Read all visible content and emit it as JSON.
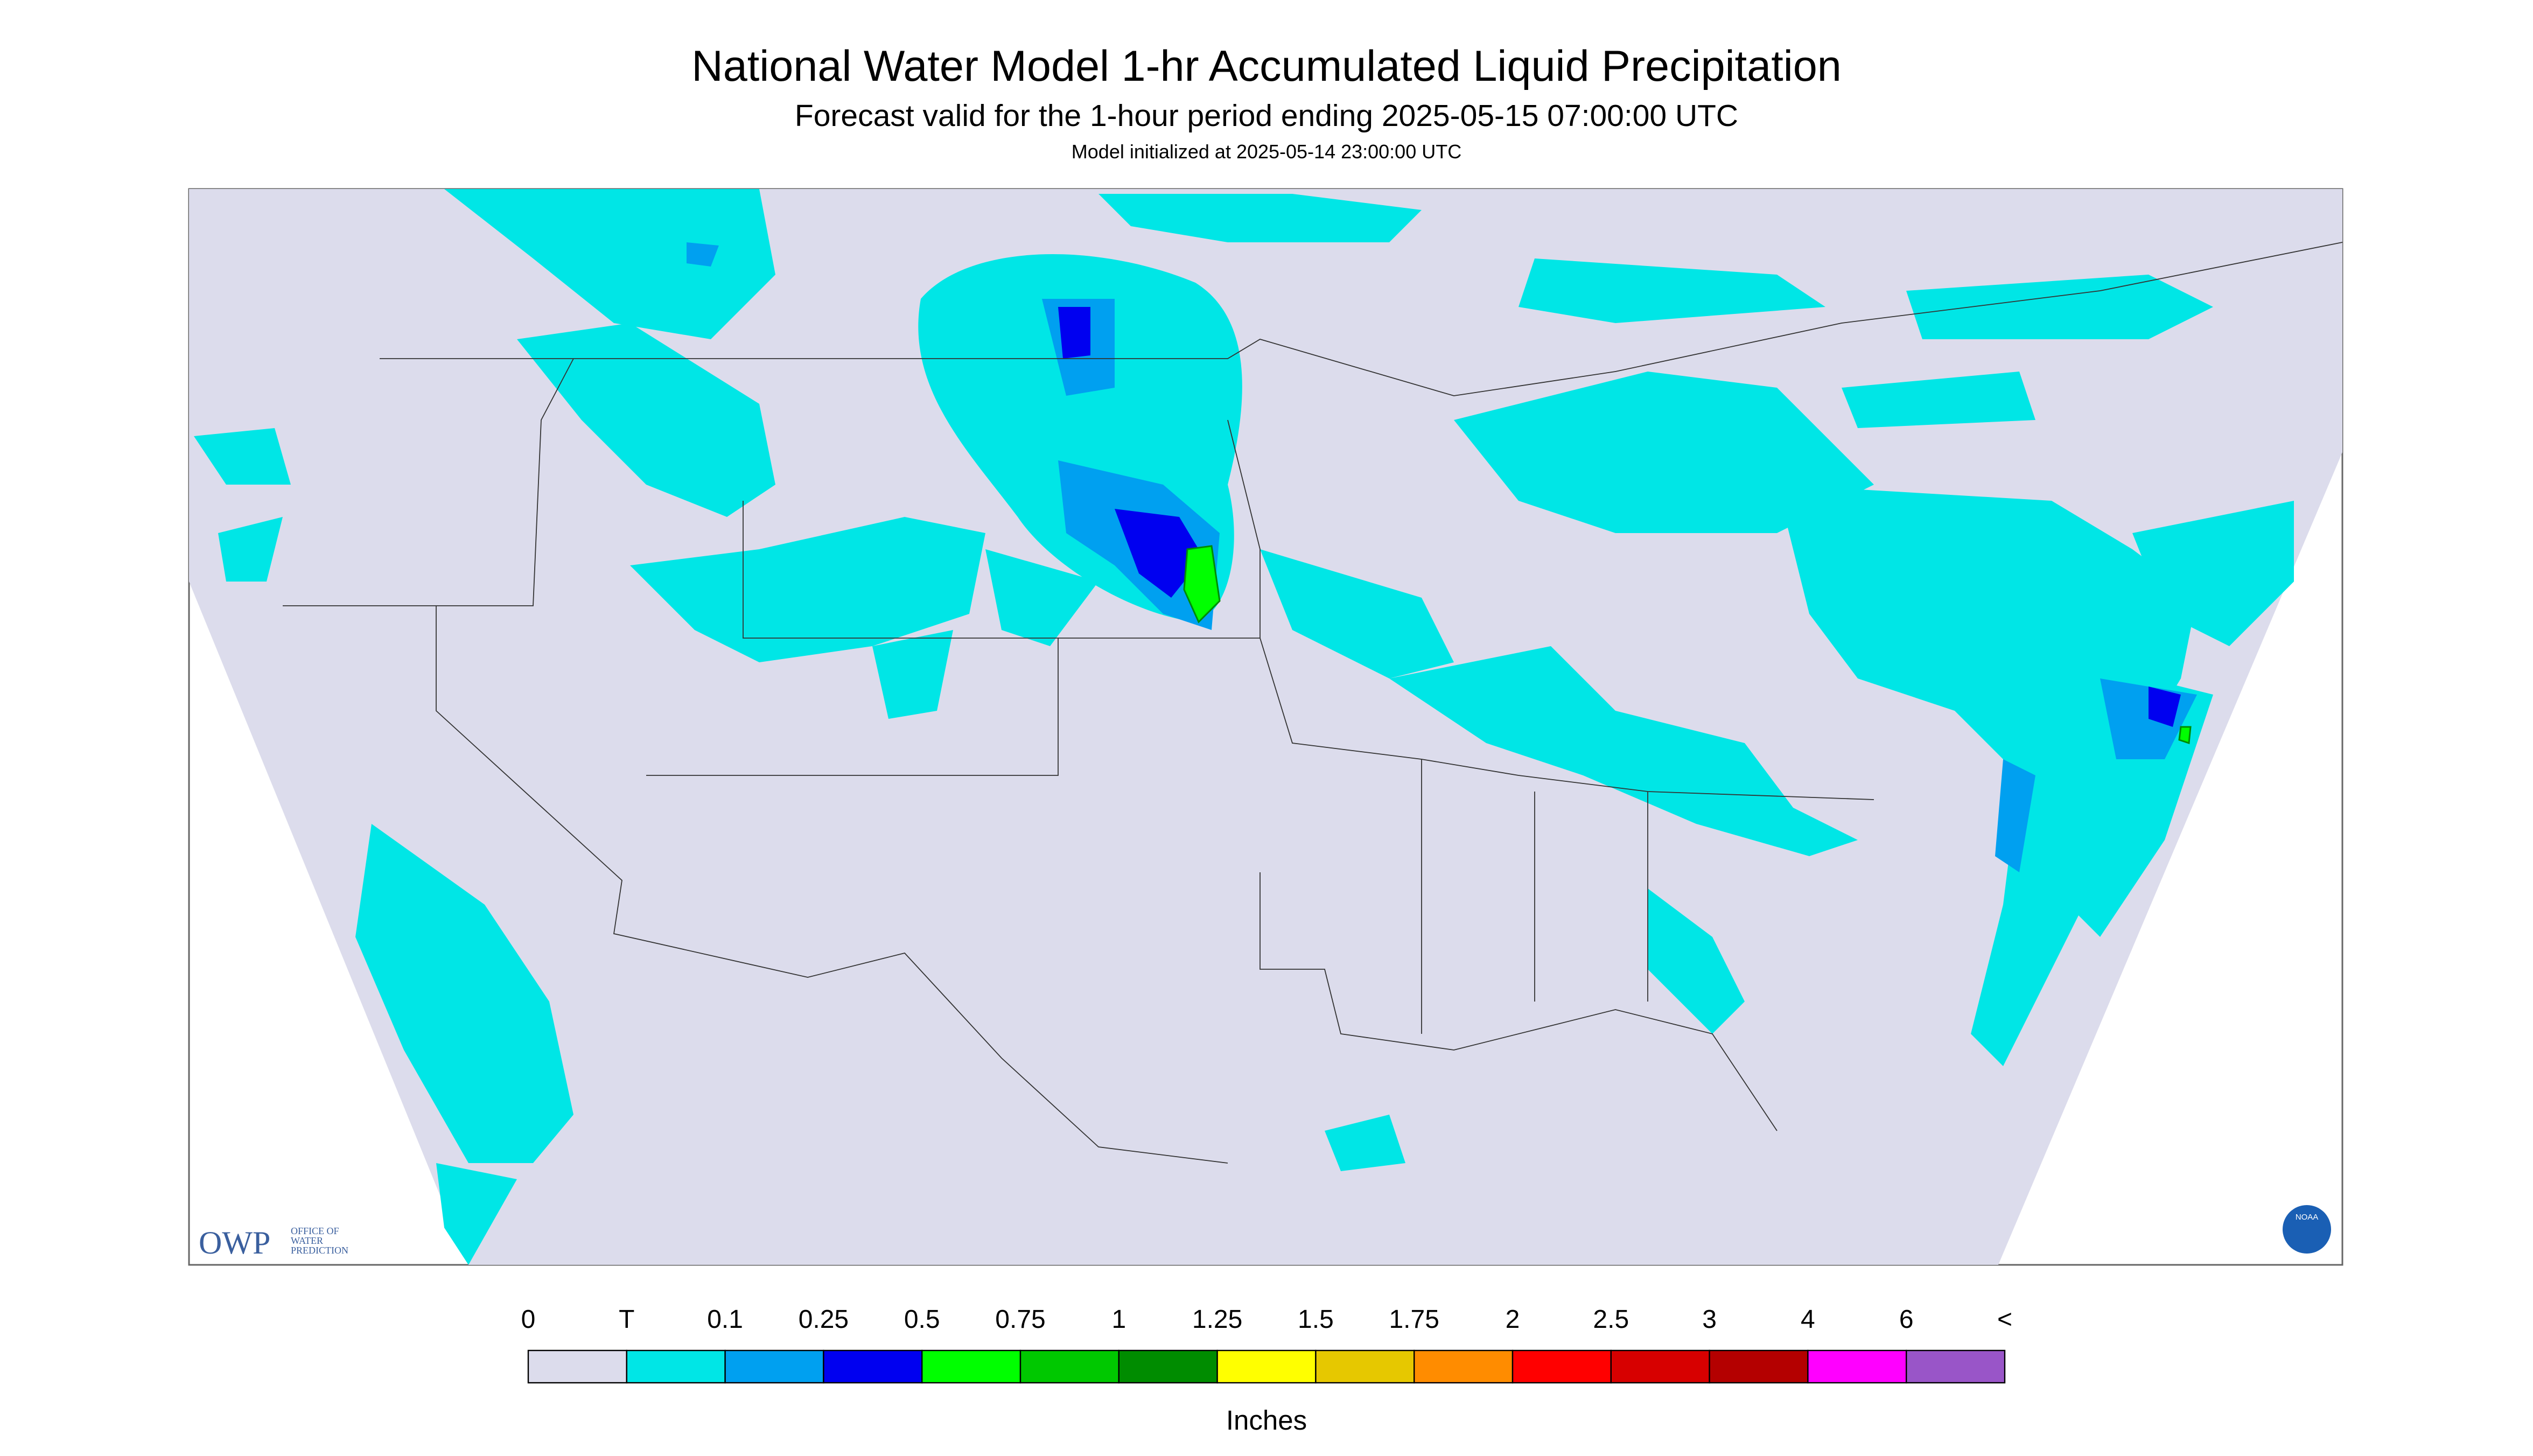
{
  "header": {
    "title": "National Water Model 1-hr Accumulated Liquid Precipitation",
    "subtitle": "Forecast valid for the 1-hour period ending 2025-05-15 07:00:00 UTC",
    "note": "Model initialized at 2025-05-14 23:00:00 UTC"
  },
  "logos": {
    "owp": "OWP",
    "owp_text": [
      "OFFICE OF",
      "WATER",
      "PREDICTION"
    ],
    "noaa": "NOAA"
  },
  "legend": {
    "labels": [
      "0",
      "T",
      "0.1",
      "0.25",
      "0.5",
      "0.75",
      "1",
      "1.25",
      "1.5",
      "1.75",
      "2",
      "2.5",
      "3",
      "4",
      "6",
      "<"
    ],
    "colors": [
      "#dcdcec",
      "#00e6e6",
      "#00a0f0",
      "#0000f0",
      "#00ff00",
      "#00c800",
      "#008c00",
      "#ffff00",
      "#e6c800",
      "#ff8c00",
      "#ff0000",
      "#d70000",
      "#b40000",
      "#ff00ff",
      "#9955c8"
    ],
    "unit": "Inches"
  }
}
